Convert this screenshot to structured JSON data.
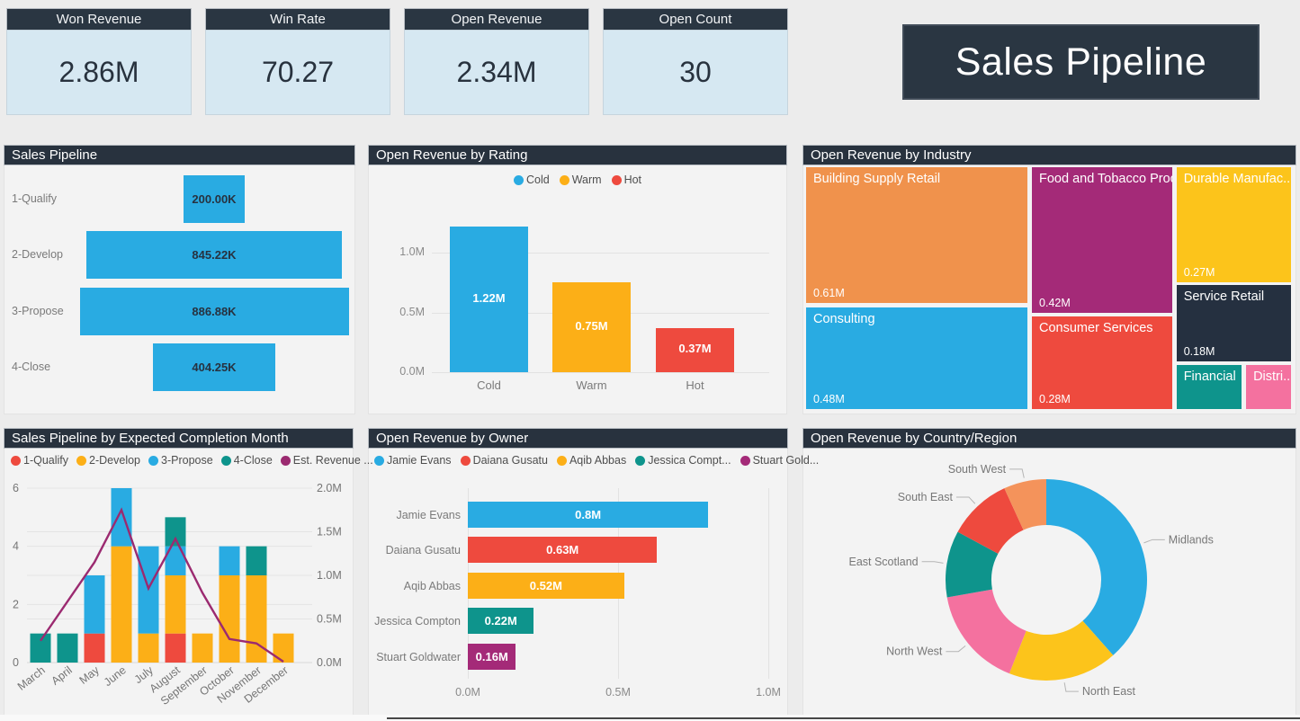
{
  "title_card": {
    "text": "Sales Pipeline"
  },
  "kpis": [
    {
      "label": "Won Revenue",
      "value": "2.86M"
    },
    {
      "label": "Win Rate",
      "value": "70.27"
    },
    {
      "label": "Open Revenue",
      "value": "2.34M"
    },
    {
      "label": "Open Count",
      "value": "30"
    }
  ],
  "panels": {
    "funnel_title": "Sales Pipeline",
    "rating_title": "Open Revenue by Rating",
    "industry_title": "Open Revenue by Industry",
    "month_title": "Sales Pipeline by Expected Completion Month",
    "owner_title": "Open Revenue by Owner",
    "region_title": "Open Revenue by Country/Region"
  },
  "colors": {
    "navy_header": "#28323E",
    "kpi_body_blue": "#D6E8F2",
    "blue": "#29ABE2",
    "amber": "#FCAF17",
    "yellow": "#FCC41B",
    "red": "#EE4A3E",
    "teal": "#0E948C",
    "magenta": "#A42A78",
    "pink": "#F4719F",
    "orange": "#F0924C",
    "light_orange": "#F4935B",
    "line_magenta": "#9B2A70"
  },
  "chart_data": [
    {
      "id": "sales-pipeline-funnel",
      "type": "bar",
      "subtype": "funnel",
      "title": "Sales Pipeline",
      "categories": [
        "1-Qualify",
        "2-Develop",
        "3-Propose",
        "4-Close"
      ],
      "values": [
        200000,
        845220,
        886880,
        404250
      ],
      "value_labels": [
        "200.00K",
        "845.22K",
        "886.88K",
        "404.25K"
      ],
      "bar_color": "#29ABE2"
    },
    {
      "id": "open-revenue-by-rating",
      "type": "bar",
      "title": "Open Revenue by Rating",
      "categories": [
        "Cold",
        "Warm",
        "Hot"
      ],
      "values": [
        1.22,
        0.75,
        0.37
      ],
      "value_labels": [
        "1.22M",
        "0.75M",
        "0.37M"
      ],
      "colors": [
        "#29ABE2",
        "#FCAF17",
        "#EE4A3E"
      ],
      "legend": [
        "Cold",
        "Warm",
        "Hot"
      ],
      "legend_position": "top-center",
      "y_ticks": [
        "0.0M",
        "0.5M",
        "1.0M"
      ],
      "ylim": [
        0,
        1.37
      ],
      "unit": "M"
    },
    {
      "id": "open-revenue-by-industry",
      "type": "treemap",
      "title": "Open Revenue by Industry",
      "tiles": [
        {
          "label": "Building Supply Retail",
          "value_label": "0.61M",
          "value": 0.61,
          "color": "#F0924C",
          "rect": [
            0,
            0,
            0.459,
            0.566
          ]
        },
        {
          "label": "Consulting",
          "value_label": "0.48M",
          "value": 0.48,
          "color": "#29ABE2",
          "rect": [
            0,
            0.574,
            0.459,
            0.426
          ]
        },
        {
          "label": "Food and Tobacco Proc...",
          "value_label": "0.42M",
          "value": 0.42,
          "color": "#A42A78",
          "rect": [
            0.464,
            0,
            0.292,
            0.606
          ]
        },
        {
          "label": "Consumer Services",
          "value_label": "0.28M",
          "value": 0.28,
          "color": "#EE4A3E",
          "rect": [
            0.464,
            0.613,
            0.292,
            0.387
          ]
        },
        {
          "label": "Durable Manufac...",
          "value_label": "0.27M",
          "value": 0.27,
          "color": "#FCC41B",
          "rect": [
            0.761,
            0,
            0.239,
            0.478
          ]
        },
        {
          "label": "Service Retail",
          "value_label": "0.18M",
          "value": 0.18,
          "color": "#253040",
          "rect": [
            0.761,
            0.485,
            0.239,
            0.318
          ]
        },
        {
          "label": "Financial",
          "value_label": "",
          "color": "#0E948C",
          "rect": [
            0.761,
            0.81,
            0.138,
            0.19
          ]
        },
        {
          "label": "Distri...",
          "value_label": "",
          "color": "#F4719F",
          "rect": [
            0.904,
            0.81,
            0.096,
            0.19
          ]
        }
      ]
    },
    {
      "id": "sales-pipeline-by-expected-completion-month",
      "type": "bar",
      "subtype": "stacked-column-with-line",
      "title": "Sales Pipeline by Expected Completion Month",
      "categories": [
        "March",
        "April",
        "May",
        "June",
        "July",
        "August",
        "September",
        "October",
        "November",
        "December"
      ],
      "series": [
        {
          "name": "1-Qualify",
          "color": "#EE4A3E",
          "values": [
            0,
            0,
            1,
            0,
            0,
            1,
            0,
            0,
            0,
            0
          ]
        },
        {
          "name": "2-Develop",
          "color": "#FCAF17",
          "values": [
            0,
            0,
            0,
            4,
            1,
            2,
            1,
            3,
            3,
            1
          ]
        },
        {
          "name": "3-Propose",
          "color": "#29ABE2",
          "values": [
            0,
            0,
            2,
            2,
            3,
            1,
            0,
            1,
            0,
            0
          ]
        },
        {
          "name": "4-Close",
          "color": "#0E948C",
          "values": [
            1,
            1,
            0,
            0,
            0,
            1,
            0,
            0,
            1,
            0
          ]
        }
      ],
      "line": {
        "name": "Est. Revenue ...",
        "color": "#9B2A70",
        "values": [
          0.25,
          0.7,
          1.15,
          1.75,
          0.85,
          1.42,
          0.8,
          0.27,
          0.22,
          0.01
        ],
        "unit": "M"
      },
      "left_axis": {
        "ticks": [
          "0",
          "2",
          "4",
          "6"
        ],
        "max": 6
      },
      "right_axis": {
        "ticks": [
          "0.0M",
          "0.5M",
          "1.0M",
          "1.5M",
          "2.0M"
        ],
        "max": 2
      },
      "legend_position": "top-left"
    },
    {
      "id": "open-revenue-by-owner",
      "type": "bar",
      "subtype": "horizontal",
      "title": "Open Revenue by Owner",
      "categories": [
        "Jamie Evans",
        "Daiana Gusatu",
        "Aqib Abbas",
        "Jessica Compton",
        "Stuart Goldwater"
      ],
      "values": [
        0.8,
        0.63,
        0.52,
        0.22,
        0.16
      ],
      "value_labels": [
        "0.8M",
        "0.63M",
        "0.52M",
        "0.22M",
        "0.16M"
      ],
      "colors": [
        "#29ABE2",
        "#EE4A3E",
        "#FCAF17",
        "#0E948C",
        "#A42A78"
      ],
      "legend": [
        "Jamie Evans",
        "Daiana Gusatu",
        "Aqib Abbas",
        "Jessica Compt...",
        "Stuart Gold..."
      ],
      "x_ticks": [
        "0.0M",
        "0.5M",
        "1.0M"
      ],
      "xlim": [
        0,
        1.0
      ]
    },
    {
      "id": "open-revenue-by-country-region",
      "type": "pie",
      "subtype": "donut",
      "title": "Open Revenue by Country/Region",
      "segments": [
        {
          "label": "Midlands",
          "value": 0.9,
          "color": "#29ABE2"
        },
        {
          "label": "North East",
          "value": 0.41,
          "color": "#FCC41B"
        },
        {
          "label": "North West",
          "value": 0.38,
          "color": "#F4719F"
        },
        {
          "label": "East Scotland",
          "value": 0.25,
          "color": "#0E948C"
        },
        {
          "label": "South East",
          "value": 0.24,
          "color": "#EE4A3E"
        },
        {
          "label": "South West",
          "value": 0.16,
          "color": "#F4935B"
        }
      ],
      "values_estimated_from_angles": true,
      "start_angle_deg": 0,
      "direction": "clockwise"
    }
  ]
}
